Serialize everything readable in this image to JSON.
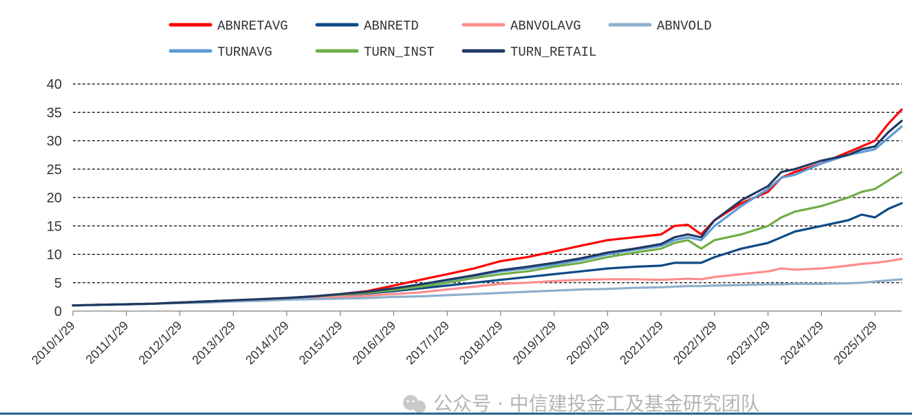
{
  "chart_data": {
    "type": "line",
    "title": "",
    "xlabel": "",
    "ylabel": "",
    "ylim": [
      0,
      40
    ],
    "yticks": [
      "0",
      "5",
      "10",
      "15",
      "20",
      "25",
      "30",
      "35",
      "40"
    ],
    "grid": "horizontal dashed",
    "legend_position": "top",
    "x_ticks": [
      "2010/1/29",
      "2011/1/29",
      "2012/1/29",
      "2013/1/29",
      "2014/1/29",
      "2015/1/29",
      "2016/1/29",
      "2017/1/29",
      "2018/1/29",
      "2019/1/29",
      "2020/1/29",
      "2021/1/29",
      "2022/1/29",
      "2023/1/29",
      "2024/1/29",
      "2025/1/29"
    ],
    "x_years": [
      2010.0,
      2010.5,
      2011.0,
      2011.5,
      2012.0,
      2012.5,
      2013.0,
      2013.5,
      2014.0,
      2014.5,
      2015.0,
      2015.5,
      2016.0,
      2016.5,
      2017.0,
      2017.5,
      2018.0,
      2018.5,
      2019.0,
      2019.5,
      2020.0,
      2020.5,
      2021.0,
      2021.25,
      2021.5,
      2021.75,
      2022.0,
      2022.5,
      2023.0,
      2023.25,
      2023.5,
      2024.0,
      2024.5,
      2024.75,
      2025.0,
      2025.25,
      2025.5
    ],
    "series": [
      {
        "name": "ABNRETAVG",
        "color": "#ff0000",
        "values": [
          1.0,
          1.1,
          1.2,
          1.3,
          1.5,
          1.7,
          1.9,
          2.1,
          2.3,
          2.6,
          3.0,
          3.5,
          4.5,
          5.5,
          6.5,
          7.5,
          8.8,
          9.5,
          10.5,
          11.5,
          12.5,
          13.0,
          13.5,
          15.0,
          15.2,
          13.5,
          16.0,
          19.0,
          21.0,
          23.5,
          24.5,
          26.0,
          28.0,
          29.0,
          30.0,
          33.0,
          35.5
        ]
      },
      {
        "name": "ABNRETD",
        "color": "#0d4a85",
        "values": [
          1.0,
          1.1,
          1.2,
          1.3,
          1.5,
          1.7,
          1.9,
          2.0,
          2.2,
          2.5,
          2.8,
          3.1,
          3.5,
          4.0,
          4.5,
          5.0,
          5.5,
          6.0,
          6.5,
          7.0,
          7.5,
          7.8,
          8.0,
          8.5,
          8.5,
          8.5,
          9.5,
          11.0,
          12.0,
          13.0,
          14.0,
          15.0,
          16.0,
          17.0,
          16.5,
          18.0,
          19.0
        ]
      },
      {
        "name": "ABNVOLAVG",
        "color": "#ff8c8c",
        "values": [
          1.0,
          1.1,
          1.2,
          1.3,
          1.5,
          1.7,
          1.8,
          2.0,
          2.2,
          2.3,
          2.5,
          2.7,
          3.0,
          3.3,
          3.8,
          4.3,
          4.8,
          5.0,
          5.3,
          5.5,
          5.6,
          5.6,
          5.5,
          5.6,
          5.7,
          5.6,
          6.0,
          6.5,
          7.0,
          7.5,
          7.3,
          7.5,
          8.0,
          8.3,
          8.5,
          8.8,
          9.2
        ]
      },
      {
        "name": "ABNVOLD",
        "color": "#8eaecb",
        "values": [
          1.0,
          1.1,
          1.2,
          1.3,
          1.4,
          1.5,
          1.7,
          1.8,
          2.0,
          2.1,
          2.2,
          2.3,
          2.5,
          2.6,
          2.8,
          3.0,
          3.2,
          3.4,
          3.6,
          3.8,
          3.9,
          4.1,
          4.2,
          4.3,
          4.4,
          4.4,
          4.5,
          4.6,
          4.7,
          4.7,
          4.8,
          4.8,
          4.9,
          5.0,
          5.2,
          5.4,
          5.6
        ]
      },
      {
        "name": "TURNAVG",
        "color": "#5b9bd5",
        "values": [
          1.0,
          1.1,
          1.2,
          1.3,
          1.5,
          1.7,
          1.9,
          2.1,
          2.3,
          2.6,
          2.9,
          3.3,
          3.9,
          4.6,
          5.4,
          6.2,
          7.0,
          7.5,
          8.2,
          9.0,
          10.0,
          10.8,
          11.5,
          12.5,
          13.0,
          12.5,
          15.0,
          18.5,
          21.5,
          23.5,
          24.0,
          26.0,
          27.5,
          28.0,
          28.5,
          30.5,
          32.5
        ]
      },
      {
        "name": "TURN_INST",
        "color": "#70ad47",
        "values": [
          1.0,
          1.1,
          1.2,
          1.3,
          1.5,
          1.7,
          1.9,
          2.1,
          2.3,
          2.6,
          2.9,
          3.2,
          3.7,
          4.3,
          5.0,
          5.8,
          6.5,
          7.0,
          7.8,
          8.5,
          9.5,
          10.3,
          11.0,
          12.0,
          12.5,
          11.0,
          12.5,
          13.5,
          15.0,
          16.5,
          17.5,
          18.5,
          20.0,
          21.0,
          21.5,
          23.0,
          24.5
        ]
      },
      {
        "name": "TURN_RETAIL",
        "color": "#203864",
        "values": [
          1.0,
          1.1,
          1.2,
          1.3,
          1.5,
          1.7,
          1.9,
          2.1,
          2.3,
          2.6,
          3.0,
          3.4,
          4.0,
          4.7,
          5.5,
          6.3,
          7.2,
          7.8,
          8.5,
          9.3,
          10.3,
          11.0,
          11.8,
          13.0,
          13.5,
          13.0,
          16.0,
          19.5,
          22.0,
          24.5,
          25.0,
          26.5,
          27.5,
          28.5,
          29.0,
          31.5,
          33.5
        ]
      }
    ]
  },
  "legend_rows": [
    [
      0,
      1,
      2,
      3
    ],
    [
      4,
      5,
      6
    ]
  ],
  "watermark": {
    "text": "公众号 · 中信建投金工及基金研究团队",
    "icon": "wechat-icon"
  }
}
